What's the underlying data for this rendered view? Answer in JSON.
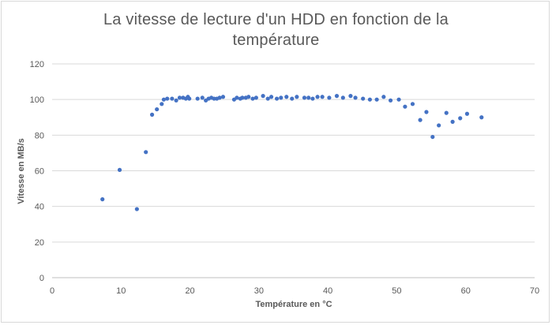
{
  "chart_data": {
    "type": "scatter",
    "title_lines": [
      "La vitesse de lecture d'un HDD en fonction de la",
      "température"
    ],
    "xlabel": "Température en °C",
    "ylabel": "Vitesse en MB/s",
    "xlim": [
      0,
      70
    ],
    "ylim": [
      0,
      120
    ],
    "xticks": [
      0,
      10,
      20,
      30,
      40,
      50,
      60,
      70
    ],
    "yticks": [
      0,
      20,
      40,
      60,
      80,
      100,
      120
    ],
    "grid": "horizontal",
    "legend": "none",
    "marker_color": "#4472c4",
    "points": [
      [
        7.3,
        44
      ],
      [
        9.8,
        60.5
      ],
      [
        12.3,
        38.5
      ],
      [
        13.6,
        70.5
      ],
      [
        14.5,
        91.5
      ],
      [
        15.2,
        94.5
      ],
      [
        15.9,
        97.5
      ],
      [
        16.2,
        100
      ],
      [
        16.7,
        100.5
      ],
      [
        17.4,
        100.5
      ],
      [
        18.0,
        99.5
      ],
      [
        18.5,
        101
      ],
      [
        19.0,
        101
      ],
      [
        19.4,
        100.5
      ],
      [
        19.7,
        101.5
      ],
      [
        19.9,
        100.5
      ],
      [
        21.1,
        100.5
      ],
      [
        21.8,
        101
      ],
      [
        22.3,
        99.5
      ],
      [
        22.7,
        100.5
      ],
      [
        23.1,
        101
      ],
      [
        23.5,
        100.5
      ],
      [
        23.9,
        100.5
      ],
      [
        24.3,
        101
      ],
      [
        24.8,
        101.5
      ],
      [
        26.4,
        100
      ],
      [
        26.8,
        101
      ],
      [
        27.3,
        100.5
      ],
      [
        27.6,
        101
      ],
      [
        28.1,
        101
      ],
      [
        28.5,
        101.5
      ],
      [
        29.1,
        100.5
      ],
      [
        29.6,
        101
      ],
      [
        30.6,
        102
      ],
      [
        31.3,
        100.5
      ],
      [
        31.8,
        101.5
      ],
      [
        32.6,
        100.5
      ],
      [
        33.2,
        101
      ],
      [
        34.0,
        101.5
      ],
      [
        34.8,
        100.5
      ],
      [
        35.5,
        101.5
      ],
      [
        36.6,
        101
      ],
      [
        37.2,
        101
      ],
      [
        37.8,
        100.5
      ],
      [
        38.5,
        101.5
      ],
      [
        39.2,
        101.5
      ],
      [
        40.2,
        101
      ],
      [
        41.3,
        102
      ],
      [
        42.2,
        101
      ],
      [
        43.3,
        102
      ],
      [
        44.0,
        101
      ],
      [
        45.1,
        100.5
      ],
      [
        46.1,
        100
      ],
      [
        47.1,
        100
      ],
      [
        48.1,
        101.5
      ],
      [
        49.1,
        99.5
      ],
      [
        50.3,
        100
      ],
      [
        51.2,
        96
      ],
      [
        52.3,
        97.5
      ],
      [
        53.4,
        88.5
      ],
      [
        54.3,
        93
      ],
      [
        55.2,
        79
      ],
      [
        56.1,
        85.5
      ],
      [
        57.2,
        92.5
      ],
      [
        58.1,
        87.5
      ],
      [
        59.2,
        89.5
      ],
      [
        60.2,
        92
      ],
      [
        62.3,
        90
      ]
    ]
  }
}
